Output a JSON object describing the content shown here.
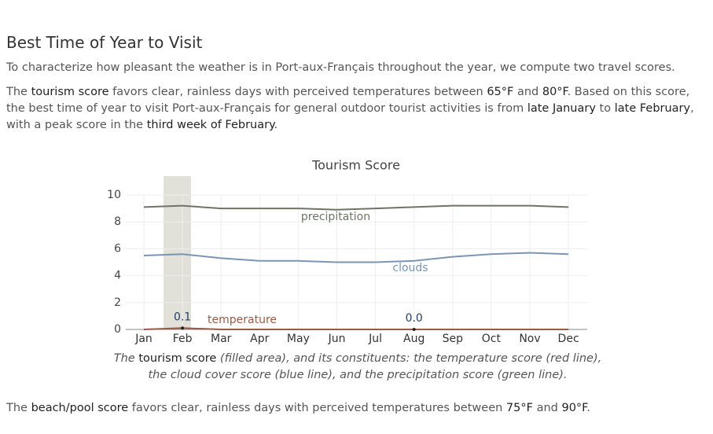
{
  "heading": "Best Time of Year to Visit",
  "intro": "To characterize how pleasant the weather is in Port-aux-Français throughout the year, we compute two travel scores.",
  "tourism_paragraph": [
    {
      "text": "The "
    },
    {
      "text": "tourism score",
      "em": true
    },
    {
      "text": " favors clear, rainless days with perceived temperatures between "
    },
    {
      "text": "65°F",
      "em": true
    },
    {
      "text": " and "
    },
    {
      "text": "80°F",
      "em": true
    },
    {
      "text": ". Based on this score, the best time of year to visit Port-aux-Français for general outdoor tourist activities is from "
    },
    {
      "text": "late January",
      "em": true
    },
    {
      "text": " to "
    },
    {
      "text": "late February",
      "em": true
    },
    {
      "text": ", with a peak score in the "
    },
    {
      "text": "third week of February",
      "em": true
    },
    {
      "text": "."
    }
  ],
  "chart_data": {
    "type": "line",
    "title": "Tourism Score",
    "categories": [
      "Jan",
      "Feb",
      "Mar",
      "Apr",
      "May",
      "Jun",
      "Jul",
      "Aug",
      "Sep",
      "Oct",
      "Nov",
      "Dec"
    ],
    "ylim": [
      0,
      10
    ],
    "yticks": [
      0,
      2,
      4,
      6,
      8,
      10
    ],
    "grid": true,
    "series": [
      {
        "name": "precipitation",
        "color": "#6f7466",
        "values": [
          9.1,
          9.2,
          9.0,
          9.0,
          9.0,
          8.9,
          9.0,
          9.1,
          9.2,
          9.2,
          9.2,
          9.1
        ]
      },
      {
        "name": "clouds",
        "color": "#7b96b2",
        "values": [
          5.5,
          5.6,
          5.3,
          5.1,
          5.1,
          5.0,
          5.0,
          5.1,
          5.4,
          5.6,
          5.7,
          5.6
        ]
      },
      {
        "name": "temperature",
        "color": "#9a5a45",
        "values": [
          0.0,
          0.1,
          0.0,
          0.0,
          0.0,
          0.0,
          0.0,
          0.0,
          0.0,
          0.0,
          0.0,
          0.0
        ]
      }
    ],
    "point_labels": {
      "categories": [
        "Feb",
        "Aug"
      ],
      "values": [
        0.1,
        0
      ],
      "value_labels": [
        "0.1",
        "0.0"
      ]
    }
  },
  "caption": [
    {
      "text": "The "
    },
    {
      "text": "tourism score",
      "em": true
    },
    {
      "text": " (filled area), and its constituents: the temperature score (red line), the cloud cover score (blue line), and the precipitation score (green line)."
    }
  ],
  "beach_paragraph": [
    {
      "text": "The "
    },
    {
      "text": "beach/pool score",
      "em": true
    },
    {
      "text": " favors clear, rainless days with perceived temperatures between "
    },
    {
      "text": "75°F",
      "em": true
    },
    {
      "text": " and "
    },
    {
      "text": "90°F",
      "em": true
    },
    {
      "text": "."
    }
  ]
}
